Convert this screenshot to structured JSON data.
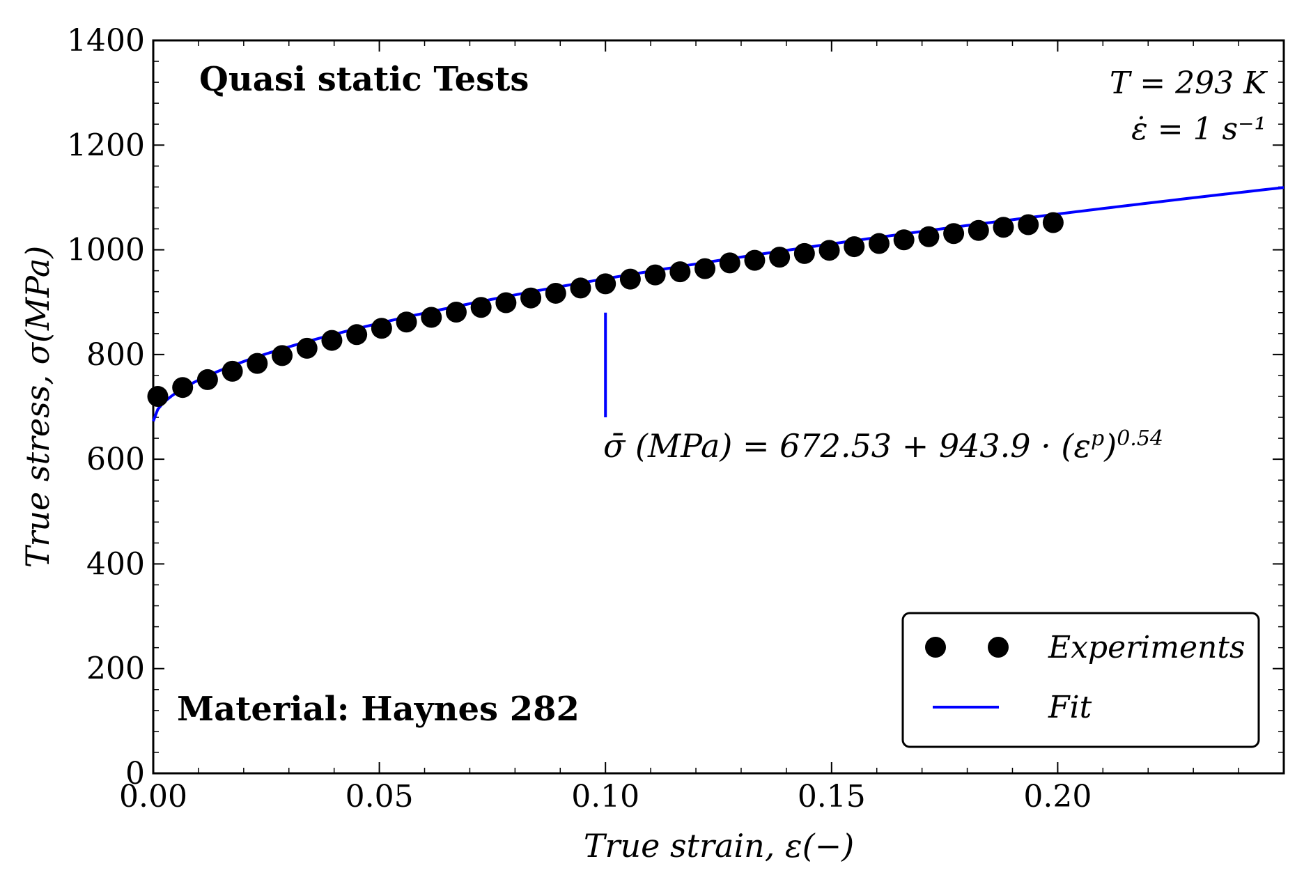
{
  "chart_data": {
    "type": "scatter",
    "title": "",
    "xlabel": "True strain, ε(−)",
    "ylabel": "True stress, σ(MPa)",
    "xlim": [
      0,
      0.25
    ],
    "ylim": [
      0,
      1400
    ],
    "x_ticks": [
      0,
      0.05,
      0.1,
      0.15,
      0.2
    ],
    "x_tick_labels": [
      "0.00",
      "0.05",
      "0.10",
      "0.15",
      "0.20"
    ],
    "y_ticks": [
      0,
      200,
      400,
      600,
      800,
      1000,
      1200,
      1400
    ],
    "y_tick_labels": [
      "0",
      "200",
      "400",
      "600",
      "800",
      "1000",
      "1200",
      "1400"
    ],
    "grid": false,
    "series": [
      {
        "name": "Experiments",
        "kind": "scatter",
        "color": "#000000",
        "x": [
          0.001,
          0.0065,
          0.012,
          0.0175,
          0.023,
          0.0285,
          0.034,
          0.0395,
          0.045,
          0.0505,
          0.056,
          0.0615,
          0.067,
          0.0725,
          0.078,
          0.0835,
          0.089,
          0.0945,
          0.1,
          0.1055,
          0.111,
          0.1165,
          0.122,
          0.1275,
          0.133,
          0.1385,
          0.144,
          0.1495,
          0.155,
          0.1605,
          0.166,
          0.1715,
          0.177,
          0.1825,
          0.188,
          0.1935,
          0.199
        ],
        "y": [
          720,
          737,
          752,
          768,
          783,
          798,
          812,
          827,
          838,
          850,
          862,
          871,
          881,
          890,
          899,
          908,
          917,
          927,
          935,
          944,
          952,
          958,
          964,
          975,
          980,
          986,
          993,
          999,
          1006,
          1012,
          1019,
          1025,
          1031,
          1037,
          1043,
          1048,
          1052
        ]
      },
      {
        "name": "Fit",
        "kind": "line",
        "color": "#0000ff",
        "equation": {
          "a": 672.53,
          "b": 943.9,
          "n": 0.54
        }
      }
    ],
    "annotations": {
      "top_left": "Quasi static Tests",
      "top_right_line1": "T = 293 K",
      "top_right_line2": "ε̇ = 1 s⁻¹",
      "bottom_left": "Material: Haynes 282",
      "equation_main": "σ̄ (MPa) = 672.53 + 943.9 · (ε",
      "equation_sup1": "p",
      "equation_close": ")",
      "equation_exponent": "0.54",
      "marker_x": 0.1,
      "marker_y_range": [
        680,
        880
      ]
    },
    "legend": {
      "location": "bottom-right",
      "entries": [
        "Experiments",
        "Fit"
      ]
    }
  }
}
